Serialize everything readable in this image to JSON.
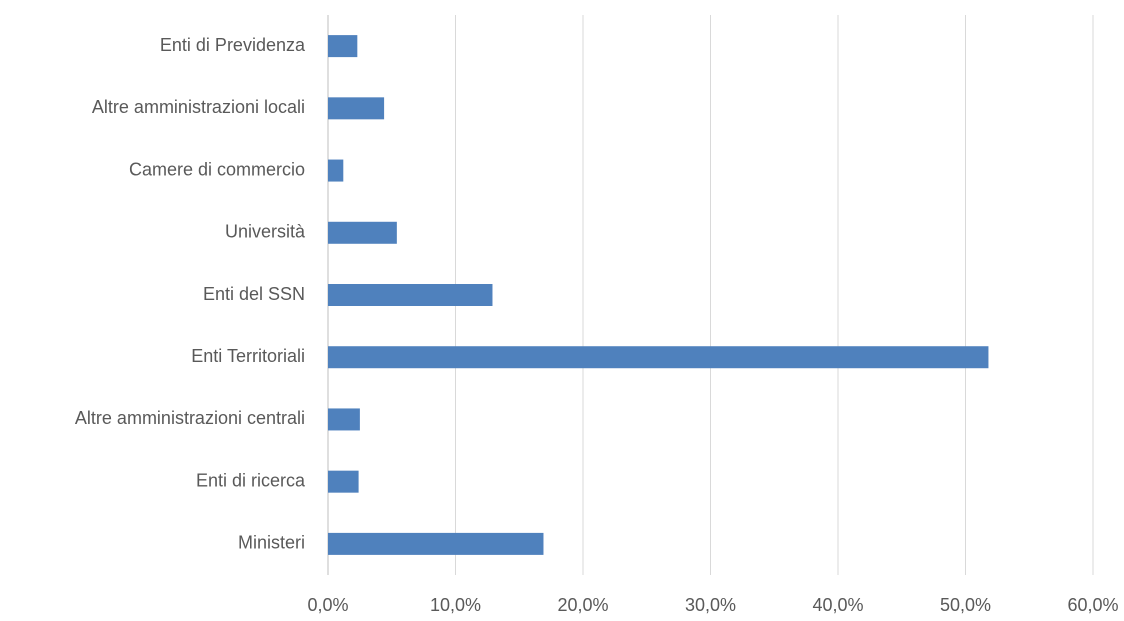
{
  "chart_data": {
    "type": "barh",
    "categories": [
      "Enti di Previdenza",
      "Altre amministrazioni locali",
      "Camere di commercio",
      "Università",
      "Enti del SSN",
      "Enti Territoriali",
      "Altre amministrazioni centrali",
      "Enti di ricerca",
      "Ministeri"
    ],
    "values": [
      2.3,
      4.4,
      1.2,
      5.4,
      12.9,
      51.8,
      2.5,
      2.4,
      16.9
    ],
    "color": "#4f81bd",
    "xlim": [
      0,
      60
    ],
    "xticks": [
      {
        "value": 0,
        "label": "0,0%"
      },
      {
        "value": 10,
        "label": "10,0%"
      },
      {
        "value": 20,
        "label": "20,0%"
      },
      {
        "value": 30,
        "label": "30,0%"
      },
      {
        "value": 40,
        "label": "40,0%"
      },
      {
        "value": 50,
        "label": "50,0%"
      },
      {
        "value": 60,
        "label": "60,0%"
      }
    ],
    "grid": true
  }
}
